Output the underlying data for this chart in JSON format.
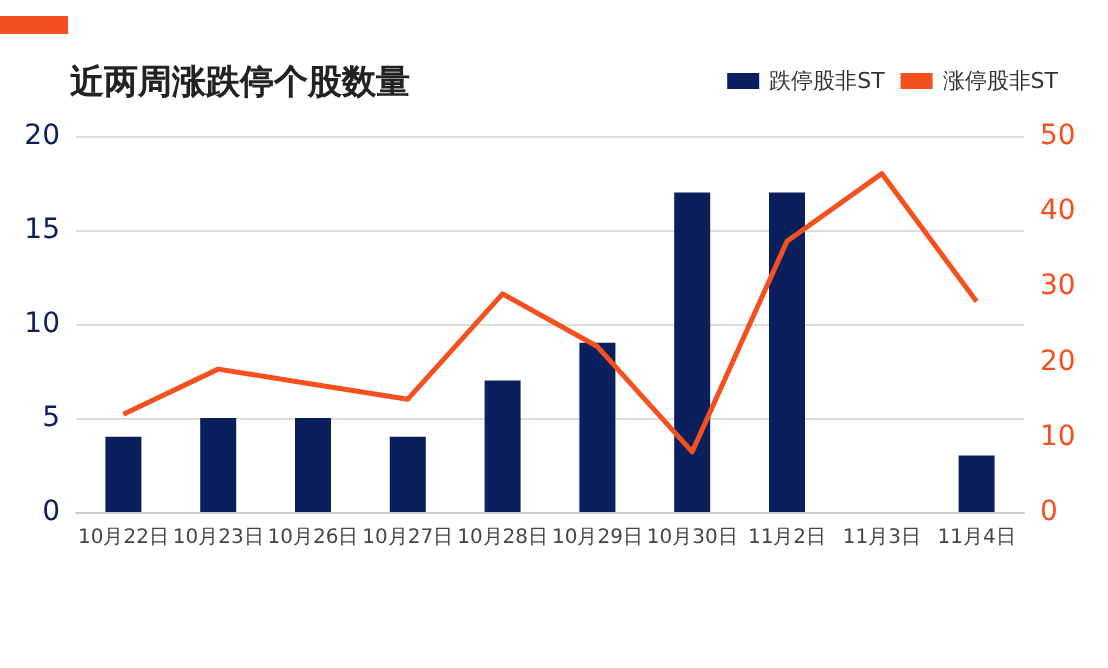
{
  "chart_data": {
    "type": "bar",
    "title": "近两周涨跌停个股数量",
    "categories": [
      "10月22日",
      "10月23日",
      "10月26日",
      "10月27日",
      "10月28日",
      "10月29日",
      "10月30日",
      "11月2日",
      "11月3日",
      "11月4日"
    ],
    "series": [
      {
        "name": "跌停股非ST",
        "color": "#0b1f5c",
        "values": [
          4,
          5,
          5,
          4,
          7,
          9,
          17,
          17,
          0,
          3
        ]
      },
      {
        "name": "涨停股非ST",
        "type": "line",
        "axis": "y2",
        "color": "#f4511e",
        "values": [
          13,
          19,
          17,
          15,
          29,
          22,
          8,
          36,
          45,
          28
        ]
      }
    ],
    "ylim": [
      0,
      20
    ],
    "yticks": [
      0,
      5,
      10,
      15,
      20
    ],
    "y2lim": [
      0,
      50
    ],
    "y2ticks": [
      0,
      10,
      20,
      30,
      40,
      50
    ],
    "grid": "y",
    "legend": "top right",
    "marker": "none",
    "line_style": "solid"
  }
}
